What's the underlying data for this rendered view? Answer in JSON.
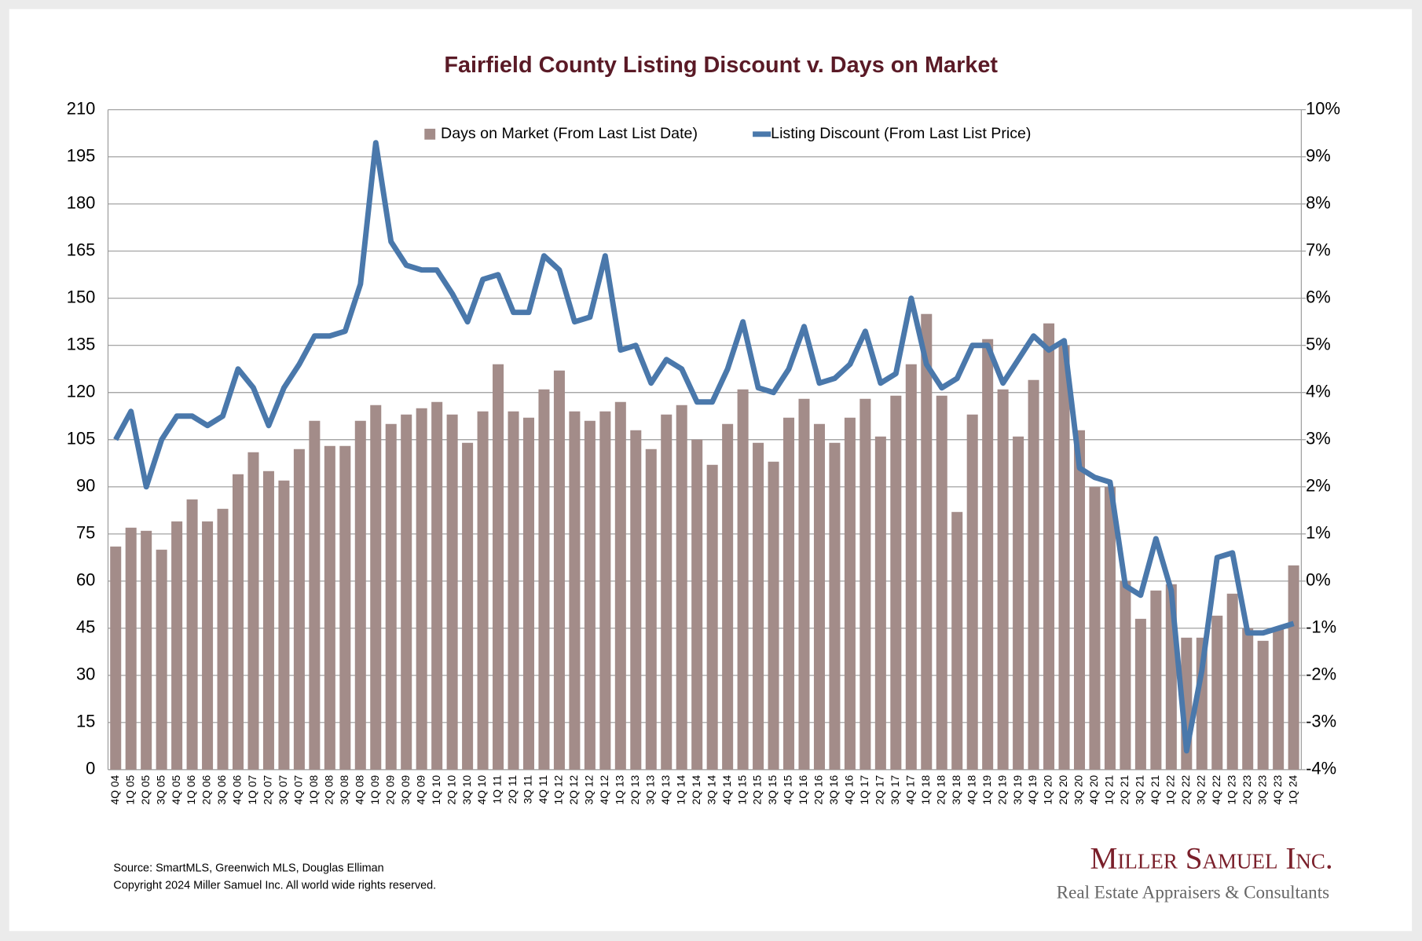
{
  "chart_data": {
    "type": "bar-line",
    "title": "Fairfield County Listing Discount v. Days on Market",
    "categories": [
      "4Q 04",
      "1Q 05",
      "2Q 05",
      "3Q 05",
      "4Q 05",
      "1Q 06",
      "2Q 06",
      "3Q 06",
      "4Q 06",
      "1Q 07",
      "2Q 07",
      "3Q 07",
      "4Q 07",
      "1Q 08",
      "2Q 08",
      "3Q 08",
      "4Q 08",
      "1Q 09",
      "2Q 09",
      "3Q 09",
      "4Q 09",
      "1Q 10",
      "2Q 10",
      "3Q 10",
      "4Q 10",
      "1Q 11",
      "2Q 11",
      "3Q 11",
      "4Q 11",
      "1Q 12",
      "2Q 12",
      "3Q 12",
      "4Q 12",
      "1Q 13",
      "2Q 13",
      "3Q 13",
      "4Q 13",
      "1Q 14",
      "2Q 14",
      "3Q 14",
      "4Q 14",
      "1Q 15",
      "2Q 15",
      "3Q 15",
      "4Q 15",
      "1Q 16",
      "2Q 16",
      "3Q 16",
      "4Q 16",
      "1Q 17",
      "2Q 17",
      "3Q 17",
      "4Q 17",
      "1Q 18",
      "2Q 18",
      "3Q 18",
      "4Q 18",
      "1Q 19",
      "2Q 19",
      "3Q 19",
      "4Q 19",
      "1Q 20",
      "2Q 20",
      "3Q 20",
      "4Q 20",
      "1Q 21",
      "2Q 21",
      "3Q 21",
      "4Q 21",
      "1Q 22",
      "2Q 22",
      "3Q 22",
      "4Q 22",
      "1Q 23",
      "2Q 23",
      "3Q 23",
      "4Q 23",
      "1Q 24"
    ],
    "series": [
      {
        "name": "Days on Market (From Last List Date)",
        "type": "bar",
        "color": "#a38c89",
        "axis": "y",
        "values": [
          71,
          77,
          76,
          70,
          79,
          86,
          79,
          83,
          94,
          101,
          95,
          92,
          102,
          111,
          103,
          103,
          111,
          116,
          110,
          113,
          115,
          117,
          113,
          104,
          114,
          129,
          114,
          112,
          121,
          127,
          114,
          111,
          114,
          117,
          108,
          102,
          113,
          116,
          105,
          97,
          110,
          121,
          104,
          98,
          112,
          118,
          110,
          104,
          112,
          118,
          106,
          119,
          129,
          145,
          119,
          82,
          113,
          137,
          121,
          106,
          124,
          142,
          135,
          108,
          90,
          90,
          60,
          48,
          57,
          59,
          42,
          42,
          49,
          56,
          45,
          41,
          45,
          65
        ]
      },
      {
        "name": "Listing Discount (From Last List Price)",
        "type": "line",
        "color": "#4a78ab",
        "axis": "y2",
        "values": [
          3.0,
          3.6,
          2.0,
          3.0,
          3.5,
          3.5,
          3.3,
          3.5,
          4.5,
          4.1,
          3.3,
          4.1,
          4.6,
          5.2,
          5.2,
          5.3,
          6.3,
          9.3,
          7.2,
          6.7,
          6.6,
          6.6,
          6.1,
          5.5,
          6.4,
          6.5,
          5.7,
          5.7,
          6.9,
          6.6,
          5.5,
          5.6,
          6.9,
          4.9,
          5.0,
          4.2,
          4.7,
          4.5,
          3.8,
          3.8,
          4.5,
          5.5,
          4.1,
          4.0,
          4.5,
          5.4,
          4.2,
          4.3,
          4.6,
          5.3,
          4.2,
          4.4,
          6.0,
          4.6,
          4.1,
          4.3,
          5.0,
          5.0,
          4.2,
          4.7,
          5.2,
          4.9,
          5.1,
          2.4,
          2.2,
          2.1,
          -0.1,
          -0.3,
          0.9,
          -0.2,
          -3.6,
          -1.9,
          0.5,
          0.6,
          -1.1,
          -1.1,
          -1.0,
          -0.9
        ]
      }
    ],
    "ylim": [
      0,
      210
    ],
    "yticks": [
      0,
      15,
      30,
      45,
      60,
      75,
      90,
      105,
      120,
      135,
      150,
      165,
      180,
      195,
      210
    ],
    "y2lim": [
      -4,
      10
    ],
    "y2ticks": [
      {
        "value": -4,
        "label": "-4%"
      },
      {
        "value": -3,
        "label": "-3%"
      },
      {
        "value": -2,
        "label": "-2%"
      },
      {
        "value": -1,
        "label": "-1%"
      },
      {
        "value": 0,
        "label": "0%"
      },
      {
        "value": 1,
        "label": "1%"
      },
      {
        "value": 2,
        "label": "2%"
      },
      {
        "value": 3,
        "label": "3%"
      },
      {
        "value": 4,
        "label": "4%"
      },
      {
        "value": 5,
        "label": "5%"
      },
      {
        "value": 6,
        "label": "6%"
      },
      {
        "value": 7,
        "label": "7%"
      },
      {
        "value": 8,
        "label": "8%"
      },
      {
        "value": 9,
        "label": "9%"
      },
      {
        "value": 10,
        "label": "10%"
      }
    ],
    "grid": true,
    "legend": "top",
    "source": "Source: SmartMLS, Greenwich MLS, Douglas Elliman",
    "copyright": "Copyright 2024 Miller Samuel Inc.  All world wide rights reserved.",
    "logo": {
      "name": "Miller Samuel Inc.",
      "tagline": "Real Estate Appraisers & Consultants"
    }
  }
}
